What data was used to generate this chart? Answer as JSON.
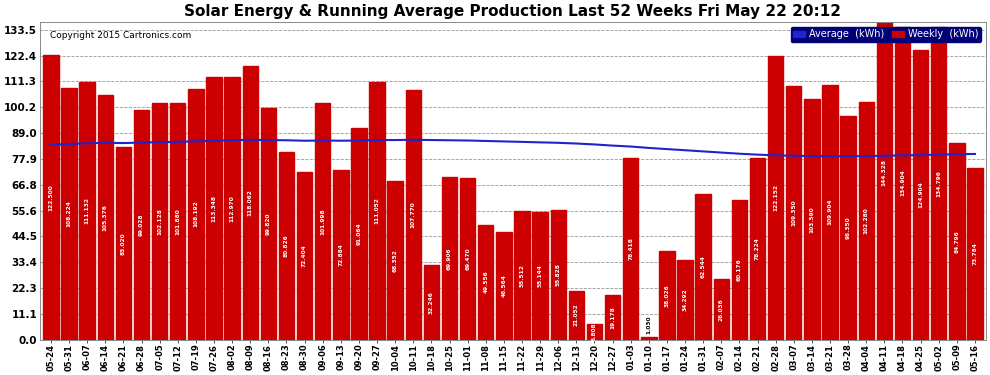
{
  "title": "Solar Energy & Running Average Production Last 52 Weeks Fri May 22 20:12",
  "copyright": "Copyright 2015 Cartronics.com",
  "categories": [
    "05-24",
    "05-31",
    "06-07",
    "06-14",
    "06-21",
    "06-28",
    "07-05",
    "07-12",
    "07-19",
    "07-26",
    "08-02",
    "08-09",
    "08-16",
    "08-23",
    "08-30",
    "09-06",
    "09-13",
    "09-20",
    "09-27",
    "10-04",
    "10-11",
    "10-18",
    "10-25",
    "11-01",
    "11-08",
    "11-15",
    "11-22",
    "11-29",
    "12-06",
    "12-13",
    "12-20",
    "12-27",
    "01-03",
    "01-10",
    "01-17",
    "01-24",
    "01-31",
    "02-07",
    "02-14",
    "02-21",
    "02-28",
    "03-07",
    "03-14",
    "03-21",
    "03-28",
    "04-04",
    "04-11",
    "04-18",
    "04-25",
    "05-02",
    "05-09",
    "05-16"
  ],
  "weekly_values": [
    122.5,
    108.224,
    111.132,
    105.376,
    83.02,
    99.028,
    102.128,
    101.88,
    108.192,
    113.348,
    112.97,
    118.062,
    99.82,
    80.826,
    72.404,
    101.998,
    72.884,
    91.064,
    111.052,
    68.352,
    107.77,
    32.246,
    69.906,
    69.47,
    49.556,
    46.564,
    55.512,
    55.144,
    55.828,
    21.052,
    6.808,
    19.178,
    78.418,
    1.03,
    38.026,
    34.292,
    62.544,
    26.036,
    60.176,
    78.224,
    122.152,
    109.35,
    103.59,
    109.904,
    96.35,
    102.28,
    144.328,
    134.904,
    124.904,
    134.796,
    84.796,
    73.784
  ],
  "avg_values": [
    84.0,
    84.3,
    84.6,
    84.8,
    84.7,
    84.9,
    85.1,
    85.2,
    85.5,
    85.7,
    85.9,
    86.1,
    86.0,
    85.9,
    85.7,
    85.8,
    85.7,
    85.8,
    86.0,
    86.0,
    86.1,
    86.0,
    85.9,
    85.8,
    85.6,
    85.4,
    85.2,
    85.0,
    84.8,
    84.5,
    84.1,
    83.6,
    83.2,
    82.6,
    82.1,
    81.6,
    81.1,
    80.6,
    80.1,
    79.7,
    79.4,
    79.2,
    79.1,
    79.0,
    79.0,
    79.1,
    79.2,
    79.4,
    79.5,
    79.7,
    79.9,
    80.0
  ],
  "bar_color": "#cc0000",
  "avg_line_color": "#2222cc",
  "background_color": "#ffffff",
  "grid_color": "#999999",
  "yticks": [
    0.0,
    11.1,
    22.3,
    33.4,
    44.5,
    55.6,
    66.8,
    77.9,
    89.0,
    100.2,
    111.3,
    122.4,
    133.5
  ],
  "ylim": [
    0,
    137
  ],
  "title_fontsize": 11,
  "legend_avg_color": "#0000cc",
  "legend_weekly_color": "#cc0000"
}
